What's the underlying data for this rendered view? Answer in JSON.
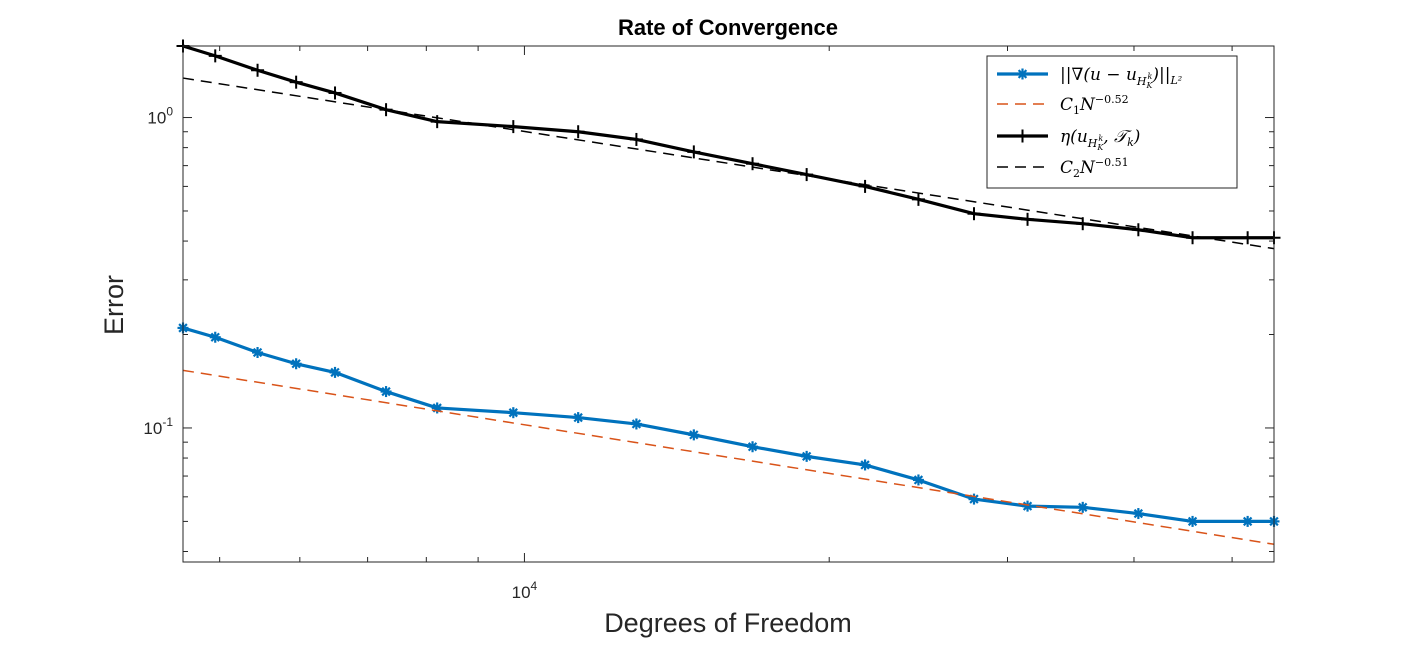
{
  "chart_data": {
    "type": "line",
    "title": "Rate of Convergence",
    "xlabel": "Degrees of Freedom",
    "ylabel": "Error",
    "xscale": "log",
    "yscale": "log",
    "xlim": [
      4600,
      55000
    ],
    "ylim": [
      0.037,
      1.7
    ],
    "x_ticks": [
      {
        "value": 10000,
        "label": "10^4"
      }
    ],
    "y_ticks": [
      {
        "value": 0.1,
        "label": "10^-1"
      },
      {
        "value": 1,
        "label": "10^0"
      }
    ],
    "legend_position": "top-right",
    "x": [
      4600,
      4950,
      5450,
      5950,
      6500,
      7300,
      8200,
      9750,
      11300,
      12900,
      14700,
      16800,
      19000,
      21700,
      24500,
      27800,
      31400,
      35600,
      40400,
      45700,
      51800,
      55000
    ],
    "series": [
      {
        "name": "||∇(u − u_{H_K^k})||_{L²}",
        "legend_main": "||∇(u − u",
        "legend_sub": "H",
        "legend_subsub": "K",
        "legend_sup": "k",
        "legend_tail": ")||",
        "legend_tail_sub": "L²",
        "color": "#0072BD",
        "style": "solid-marker-star",
        "values": [
          0.21,
          0.196,
          0.175,
          0.161,
          0.151,
          0.131,
          0.116,
          0.112,
          0.108,
          0.103,
          0.095,
          0.087,
          0.081,
          0.076,
          0.068,
          0.059,
          0.056,
          0.0555,
          0.053,
          0.05,
          0.05,
          0.05
        ]
      },
      {
        "name": "C₁N^{−0.52}",
        "legend_main": "C",
        "legend_sub": "1",
        "legend_n": "N",
        "legend_sup": "−0.52",
        "color": "#D95319",
        "style": "dashed",
        "coefficient": 12.31,
        "exponent": -0.52
      },
      {
        "name": "η(u_{H_K^k}, T_k)",
        "legend_main": "η(u",
        "legend_sub": "H",
        "legend_subsub": "K",
        "legend_sup": "k",
        "legend_tail": ", 𝒯",
        "legend_tail_sub": "k",
        "legend_end": ")",
        "color": "#000000",
        "style": "solid-marker-plus",
        "values": [
          1.7,
          1.58,
          1.42,
          1.3,
          1.2,
          1.06,
          0.97,
          0.935,
          0.9,
          0.85,
          0.775,
          0.71,
          0.655,
          0.6,
          0.545,
          0.49,
          0.47,
          0.455,
          0.435,
          0.41,
          0.41,
          0.41
        ]
      },
      {
        "name": "C₂N^{−0.51}",
        "legend_main": "C",
        "legend_sub": "2",
        "legend_n": "N",
        "legend_sup": "−0.51",
        "color": "#000000",
        "style": "dashed",
        "coefficient": 98.9,
        "exponent": -0.51
      }
    ]
  }
}
